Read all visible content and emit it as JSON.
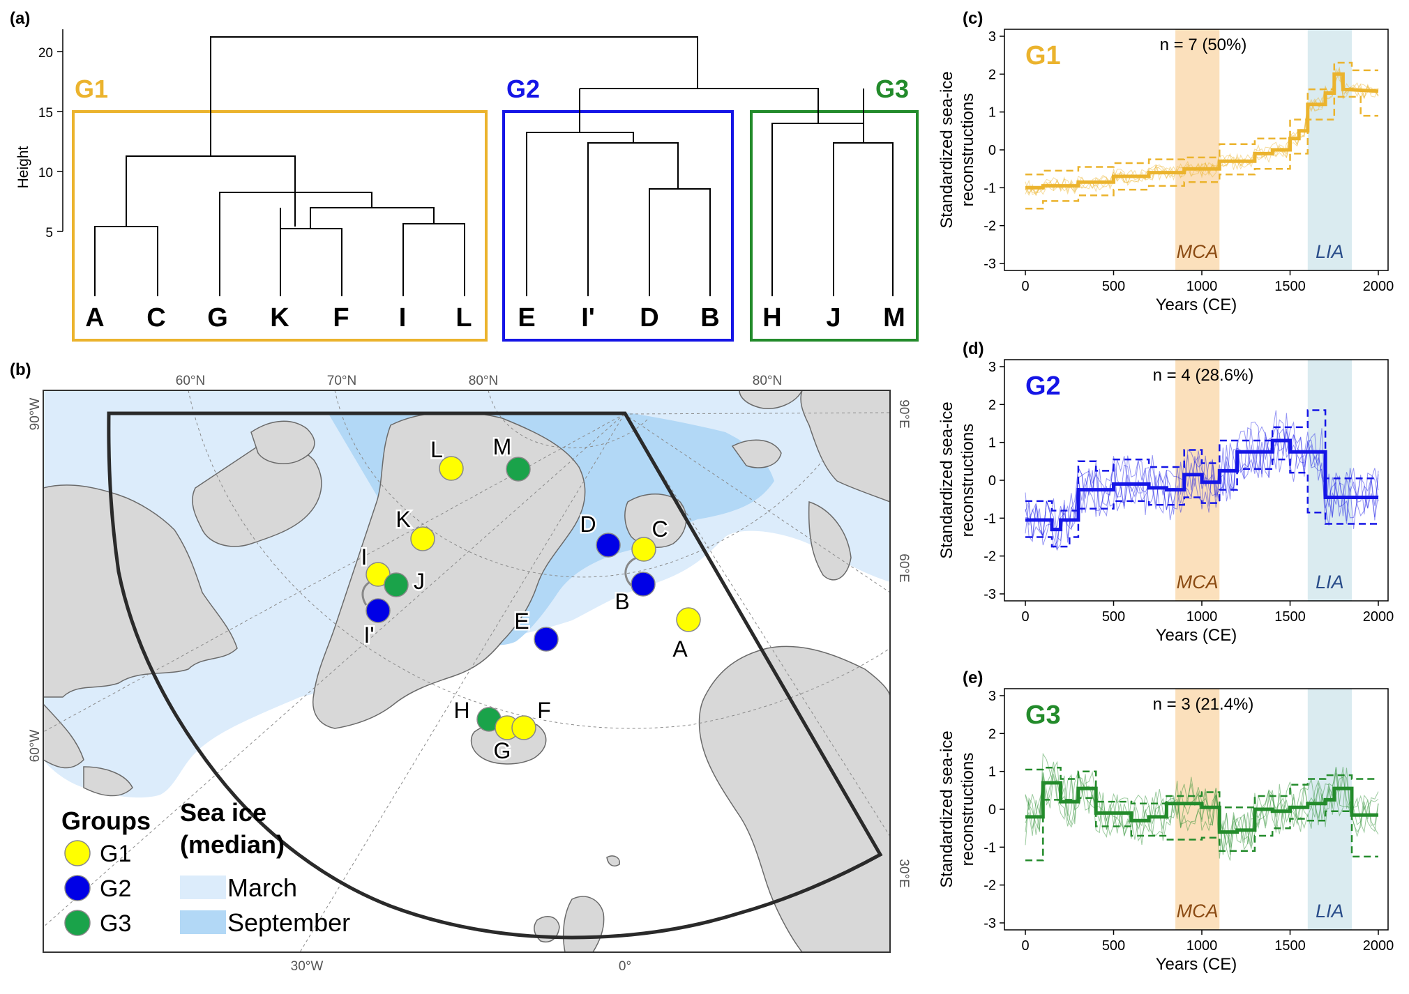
{
  "colors": {
    "g1": "#ebb32d",
    "g2": "#1515e6",
    "g3": "#238b2b",
    "dot_g1": "#ffff00",
    "dot_g2": "#0000e6",
    "dot_g3": "#1aa34a",
    "land": "#d8d8d8",
    "coast": "#6a6a6a",
    "ice_march": "#dcecfb",
    "ice_sep": "#b2d8f6",
    "mca": "#fbe0bc",
    "lia": "#daebf0"
  },
  "panel_a": {
    "label": "(a)",
    "ylabel": "Height",
    "yticks": [
      5,
      10,
      15,
      20
    ],
    "groups": [
      {
        "id": "g1",
        "name": "G1",
        "leaves": [
          "A",
          "C",
          "G",
          "K",
          "F",
          "I",
          "L"
        ]
      },
      {
        "id": "g2",
        "name": "G2",
        "leaves": [
          "E",
          "I'",
          "D",
          "B"
        ]
      },
      {
        "id": "g3",
        "name": "G3",
        "leaves": [
          "H",
          "J",
          "M"
        ]
      }
    ]
  },
  "panel_b": {
    "label": "(b)",
    "lat_labels": [
      "60°N",
      "70°N",
      "80°N",
      "80°N"
    ],
    "lon_labels": [
      "30°W",
      "0°",
      "60°W",
      "90°W",
      "90°E",
      "60°E",
      "30°E"
    ],
    "sites": [
      {
        "name": "L",
        "group": "g1"
      },
      {
        "name": "M",
        "group": "g3"
      },
      {
        "name": "K",
        "group": "g1"
      },
      {
        "name": "I",
        "group": "g1"
      },
      {
        "name": "J",
        "group": "g3"
      },
      {
        "name": "I'",
        "group": "g2"
      },
      {
        "name": "D",
        "group": "g2"
      },
      {
        "name": "C",
        "group": "g1"
      },
      {
        "name": "B",
        "group": "g2"
      },
      {
        "name": "E",
        "group": "g2"
      },
      {
        "name": "A",
        "group": "g1"
      },
      {
        "name": "H",
        "group": "g3"
      },
      {
        "name": "G",
        "group": "g1"
      },
      {
        "name": "F",
        "group": "g1"
      }
    ],
    "legend": {
      "groups_title": "Groups",
      "groups": [
        "G1",
        "G2",
        "G3"
      ],
      "ice_title_1": "Sea ice",
      "ice_title_2": "(median)",
      "ice_items": [
        "March",
        "September"
      ]
    }
  },
  "chart_data": [
    {
      "panel": "(c)",
      "type": "line",
      "group": "G1",
      "title": "n = 7 (50%)",
      "xlabel": "Years (CE)",
      "ylabel_1": "Standardized sea-ice",
      "ylabel_2": "reconstructions",
      "xlim": [
        0,
        2000
      ],
      "ylim": [
        -3,
        3
      ],
      "xticks": [
        0,
        500,
        1000,
        1500,
        2000
      ],
      "yticks": [
        -3,
        -2,
        -1,
        0,
        1,
        2,
        3
      ],
      "shading": [
        {
          "label": "MCA",
          "x": [
            850,
            1100
          ]
        },
        {
          "label": "LIA",
          "x": [
            1600,
            1850
          ]
        }
      ],
      "median": [
        [
          0,
          -1.0
        ],
        [
          100,
          -1.0
        ],
        [
          100,
          -0.95
        ],
        [
          300,
          -0.95
        ],
        [
          300,
          -0.85
        ],
        [
          500,
          -0.85
        ],
        [
          500,
          -0.7
        ],
        [
          700,
          -0.7
        ],
        [
          700,
          -0.6
        ],
        [
          900,
          -0.6
        ],
        [
          900,
          -0.5
        ],
        [
          1100,
          -0.5
        ],
        [
          1100,
          -0.3
        ],
        [
          1300,
          -0.3
        ],
        [
          1300,
          -0.1
        ],
        [
          1400,
          -0.1
        ],
        [
          1400,
          0.0
        ],
        [
          1500,
          0.0
        ],
        [
          1500,
          0.3
        ],
        [
          1550,
          0.3
        ],
        [
          1550,
          0.5
        ],
        [
          1600,
          0.5
        ],
        [
          1600,
          1.2
        ],
        [
          1700,
          1.2
        ],
        [
          1700,
          1.5
        ],
        [
          1750,
          1.5
        ],
        [
          1750,
          2.0
        ],
        [
          1800,
          2.0
        ],
        [
          1800,
          1.6
        ],
        [
          2000,
          1.55
        ]
      ],
      "upper": [
        [
          0,
          -0.65
        ],
        [
          100,
          -0.65
        ],
        [
          100,
          -0.55
        ],
        [
          300,
          -0.55
        ],
        [
          300,
          -0.45
        ],
        [
          500,
          -0.45
        ],
        [
          500,
          -0.35
        ],
        [
          700,
          -0.35
        ],
        [
          700,
          -0.25
        ],
        [
          900,
          -0.25
        ],
        [
          900,
          -0.2
        ],
        [
          1100,
          -0.2
        ],
        [
          1100,
          0.15
        ],
        [
          1300,
          0.15
        ],
        [
          1300,
          0.3
        ],
        [
          1500,
          0.3
        ],
        [
          1500,
          0.8
        ],
        [
          1600,
          0.8
        ],
        [
          1600,
          1.6
        ],
        [
          1750,
          1.6
        ],
        [
          1750,
          2.3
        ],
        [
          1850,
          2.3
        ],
        [
          1850,
          2.1
        ],
        [
          2000,
          2.1
        ]
      ],
      "lower": [
        [
          0,
          -1.55
        ],
        [
          100,
          -1.55
        ],
        [
          100,
          -1.35
        ],
        [
          300,
          -1.35
        ],
        [
          300,
          -1.2
        ],
        [
          500,
          -1.2
        ],
        [
          500,
          -1.05
        ],
        [
          700,
          -1.05
        ],
        [
          700,
          -0.95
        ],
        [
          900,
          -0.95
        ],
        [
          900,
          -0.85
        ],
        [
          1100,
          -0.85
        ],
        [
          1100,
          -0.65
        ],
        [
          1300,
          -0.65
        ],
        [
          1300,
          -0.5
        ],
        [
          1500,
          -0.5
        ],
        [
          1500,
          -0.1
        ],
        [
          1600,
          -0.1
        ],
        [
          1600,
          0.8
        ],
        [
          1750,
          0.8
        ],
        [
          1750,
          1.4
        ],
        [
          1900,
          1.4
        ],
        [
          1900,
          0.9
        ],
        [
          2000,
          0.9
        ]
      ]
    },
    {
      "panel": "(d)",
      "type": "line",
      "group": "G2",
      "title": "n = 4 (28.6%)",
      "xlabel": "Years (CE)",
      "ylabel_1": "Standardized sea-ice",
      "ylabel_2": "reconstructions",
      "xlim": [
        0,
        2000
      ],
      "ylim": [
        -3,
        3
      ],
      "xticks": [
        0,
        500,
        1000,
        1500,
        2000
      ],
      "yticks": [
        -3,
        -2,
        -1,
        0,
        1,
        2,
        3
      ],
      "shading": [
        {
          "label": "MCA",
          "x": [
            850,
            1100
          ]
        },
        {
          "label": "LIA",
          "x": [
            1600,
            1850
          ]
        }
      ],
      "median": [
        [
          0,
          -1.05
        ],
        [
          150,
          -1.05
        ],
        [
          150,
          -1.3
        ],
        [
          200,
          -1.3
        ],
        [
          200,
          -1.05
        ],
        [
          300,
          -1.05
        ],
        [
          300,
          -0.25
        ],
        [
          500,
          -0.25
        ],
        [
          500,
          -0.1
        ],
        [
          700,
          -0.1
        ],
        [
          700,
          -0.2
        ],
        [
          800,
          -0.2
        ],
        [
          800,
          -0.25
        ],
        [
          900,
          -0.25
        ],
        [
          900,
          0.15
        ],
        [
          1000,
          0.15
        ],
        [
          1000,
          -0.05
        ],
        [
          1100,
          -0.05
        ],
        [
          1100,
          0.25
        ],
        [
          1200,
          0.25
        ],
        [
          1200,
          0.75
        ],
        [
          1400,
          0.75
        ],
        [
          1400,
          1.05
        ],
        [
          1500,
          1.05
        ],
        [
          1500,
          0.75
        ],
        [
          1700,
          0.75
        ],
        [
          1700,
          -0.45
        ],
        [
          2000,
          -0.45
        ]
      ],
      "upper": [
        [
          0,
          -0.55
        ],
        [
          150,
          -0.55
        ],
        [
          150,
          -0.8
        ],
        [
          300,
          -0.8
        ],
        [
          300,
          0.5
        ],
        [
          400,
          0.5
        ],
        [
          400,
          0.25
        ],
        [
          500,
          0.25
        ],
        [
          500,
          0.55
        ],
        [
          700,
          0.55
        ],
        [
          700,
          0.35
        ],
        [
          900,
          0.35
        ],
        [
          900,
          0.8
        ],
        [
          1000,
          0.8
        ],
        [
          1000,
          0.45
        ],
        [
          1100,
          0.45
        ],
        [
          1100,
          1.05
        ],
        [
          1400,
          1.05
        ],
        [
          1400,
          1.4
        ],
        [
          1600,
          1.4
        ],
        [
          1600,
          1.85
        ],
        [
          1700,
          1.85
        ],
        [
          1700,
          0.05
        ],
        [
          2000,
          0.05
        ]
      ],
      "lower": [
        [
          0,
          -1.5
        ],
        [
          150,
          -1.5
        ],
        [
          150,
          -1.75
        ],
        [
          250,
          -1.75
        ],
        [
          250,
          -1.5
        ],
        [
          300,
          -1.5
        ],
        [
          300,
          -0.75
        ],
        [
          500,
          -0.75
        ],
        [
          500,
          -0.55
        ],
        [
          700,
          -0.55
        ],
        [
          700,
          -0.65
        ],
        [
          900,
          -0.65
        ],
        [
          900,
          -0.45
        ],
        [
          1000,
          -0.45
        ],
        [
          1000,
          -0.6
        ],
        [
          1100,
          -0.6
        ],
        [
          1100,
          -0.25
        ],
        [
          1200,
          -0.25
        ],
        [
          1200,
          0.3
        ],
        [
          1400,
          0.3
        ],
        [
          1400,
          0.55
        ],
        [
          1500,
          0.55
        ],
        [
          1500,
          0.2
        ],
        [
          1600,
          0.2
        ],
        [
          1600,
          -0.85
        ],
        [
          1700,
          -0.85
        ],
        [
          1700,
          -1.15
        ],
        [
          2000,
          -1.15
        ]
      ]
    },
    {
      "panel": "(e)",
      "type": "line",
      "group": "G3",
      "title": "n = 3 (21.4%)",
      "xlabel": "Years (CE)",
      "ylabel_1": "Standardized sea-ice",
      "ylabel_2": "reconstructions",
      "xlim": [
        0,
        2000
      ],
      "ylim": [
        -3,
        3
      ],
      "xticks": [
        0,
        500,
        1000,
        1500,
        2000
      ],
      "yticks": [
        -3,
        -2,
        -1,
        0,
        1,
        2,
        3
      ],
      "shading": [
        {
          "label": "MCA",
          "x": [
            850,
            1100
          ]
        },
        {
          "label": "LIA",
          "x": [
            1600,
            1850
          ]
        }
      ],
      "median": [
        [
          0,
          -0.2
        ],
        [
          100,
          -0.2
        ],
        [
          100,
          0.7
        ],
        [
          200,
          0.7
        ],
        [
          200,
          0.2
        ],
        [
          300,
          0.2
        ],
        [
          300,
          0.55
        ],
        [
          400,
          0.55
        ],
        [
          400,
          -0.1
        ],
        [
          600,
          -0.1
        ],
        [
          600,
          -0.3
        ],
        [
          700,
          -0.3
        ],
        [
          700,
          -0.2
        ],
        [
          800,
          -0.2
        ],
        [
          800,
          0.15
        ],
        [
          1000,
          0.15
        ],
        [
          1000,
          0.05
        ],
        [
          1100,
          0.05
        ],
        [
          1100,
          -0.6
        ],
        [
          1200,
          -0.6
        ],
        [
          1200,
          -0.55
        ],
        [
          1300,
          -0.55
        ],
        [
          1300,
          0.0
        ],
        [
          1400,
          0.0
        ],
        [
          1400,
          -0.05
        ],
        [
          1500,
          -0.05
        ],
        [
          1500,
          0.05
        ],
        [
          1600,
          0.05
        ],
        [
          1600,
          0.15
        ],
        [
          1700,
          0.15
        ],
        [
          1700,
          0.25
        ],
        [
          1750,
          0.25
        ],
        [
          1750,
          0.55
        ],
        [
          1850,
          0.55
        ],
        [
          1850,
          -0.15
        ],
        [
          2000,
          -0.15
        ]
      ],
      "upper": [
        [
          0,
          1.05
        ],
        [
          100,
          1.05
        ],
        [
          100,
          1.1
        ],
        [
          200,
          1.1
        ],
        [
          200,
          0.8
        ],
        [
          300,
          0.8
        ],
        [
          300,
          1.0
        ],
        [
          400,
          1.0
        ],
        [
          400,
          0.2
        ],
        [
          600,
          0.2
        ],
        [
          600,
          0.15
        ],
        [
          800,
          0.15
        ],
        [
          800,
          0.35
        ],
        [
          1000,
          0.35
        ],
        [
          1000,
          0.45
        ],
        [
          1100,
          0.45
        ],
        [
          1100,
          0.05
        ],
        [
          1300,
          0.05
        ],
        [
          1300,
          0.35
        ],
        [
          1500,
          0.35
        ],
        [
          1500,
          0.65
        ],
        [
          1600,
          0.65
        ],
        [
          1600,
          0.8
        ],
        [
          1700,
          0.8
        ],
        [
          1700,
          0.9
        ],
        [
          1850,
          0.9
        ],
        [
          1850,
          0.8
        ],
        [
          2000,
          0.8
        ]
      ],
      "lower": [
        [
          0,
          -1.35
        ],
        [
          100,
          -1.35
        ],
        [
          100,
          0.25
        ],
        [
          300,
          0.25
        ],
        [
          300,
          0.3
        ],
        [
          400,
          0.3
        ],
        [
          400,
          -0.45
        ],
        [
          600,
          -0.45
        ],
        [
          600,
          -0.7
        ],
        [
          800,
          -0.7
        ],
        [
          800,
          -0.8
        ],
        [
          1000,
          -0.8
        ],
        [
          1000,
          -0.75
        ],
        [
          1100,
          -0.75
        ],
        [
          1100,
          -1.1
        ],
        [
          1300,
          -1.1
        ],
        [
          1300,
          -0.7
        ],
        [
          1400,
          -0.7
        ],
        [
          1400,
          -0.5
        ],
        [
          1500,
          -0.5
        ],
        [
          1500,
          -0.25
        ],
        [
          1600,
          -0.25
        ],
        [
          1600,
          -0.3
        ],
        [
          1700,
          -0.3
        ],
        [
          1700,
          -0.05
        ],
        [
          1850,
          -0.05
        ],
        [
          1850,
          -1.25
        ],
        [
          2000,
          -1.25
        ]
      ]
    }
  ]
}
